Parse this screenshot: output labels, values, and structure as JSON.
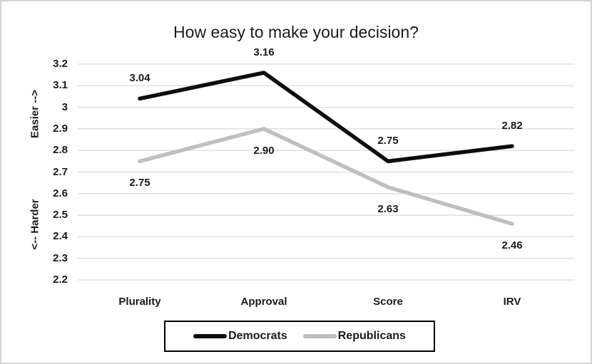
{
  "window": {
    "background": "#ffffff",
    "border_color": "#d4d4d4"
  },
  "chart_data": {
    "type": "line",
    "title": "How easy to make your decision?",
    "categories": [
      "Plurality",
      "Approval",
      "Score",
      "IRV"
    ],
    "series": [
      {
        "name": "Democrats",
        "color": "#0d0d0d",
        "values": [
          3.04,
          3.16,
          2.75,
          2.82
        ],
        "labels": [
          "3.04",
          "3.16",
          "2.75",
          "2.82"
        ],
        "label_position": "above"
      },
      {
        "name": "Republicans",
        "color": "#bfbfbf",
        "values": [
          2.75,
          2.9,
          2.63,
          2.46
        ],
        "labels": [
          "2.75",
          "2.90",
          "2.63",
          "2.46"
        ],
        "label_position": "below"
      }
    ],
    "ylim": [
      2.2,
      3.2
    ],
    "yticks": [
      "3.2",
      "3.1",
      "3",
      "2.9",
      "2.8",
      "2.7",
      "2.6",
      "2.5",
      "2.4",
      "2.3",
      "2.2"
    ],
    "ylabel_top": "Easier -->",
    "ylabel_bottom": "<-- Harder",
    "grid": true,
    "gridline_color": "#d9d9d9",
    "legend_position": "bottom",
    "xlabel": ""
  }
}
